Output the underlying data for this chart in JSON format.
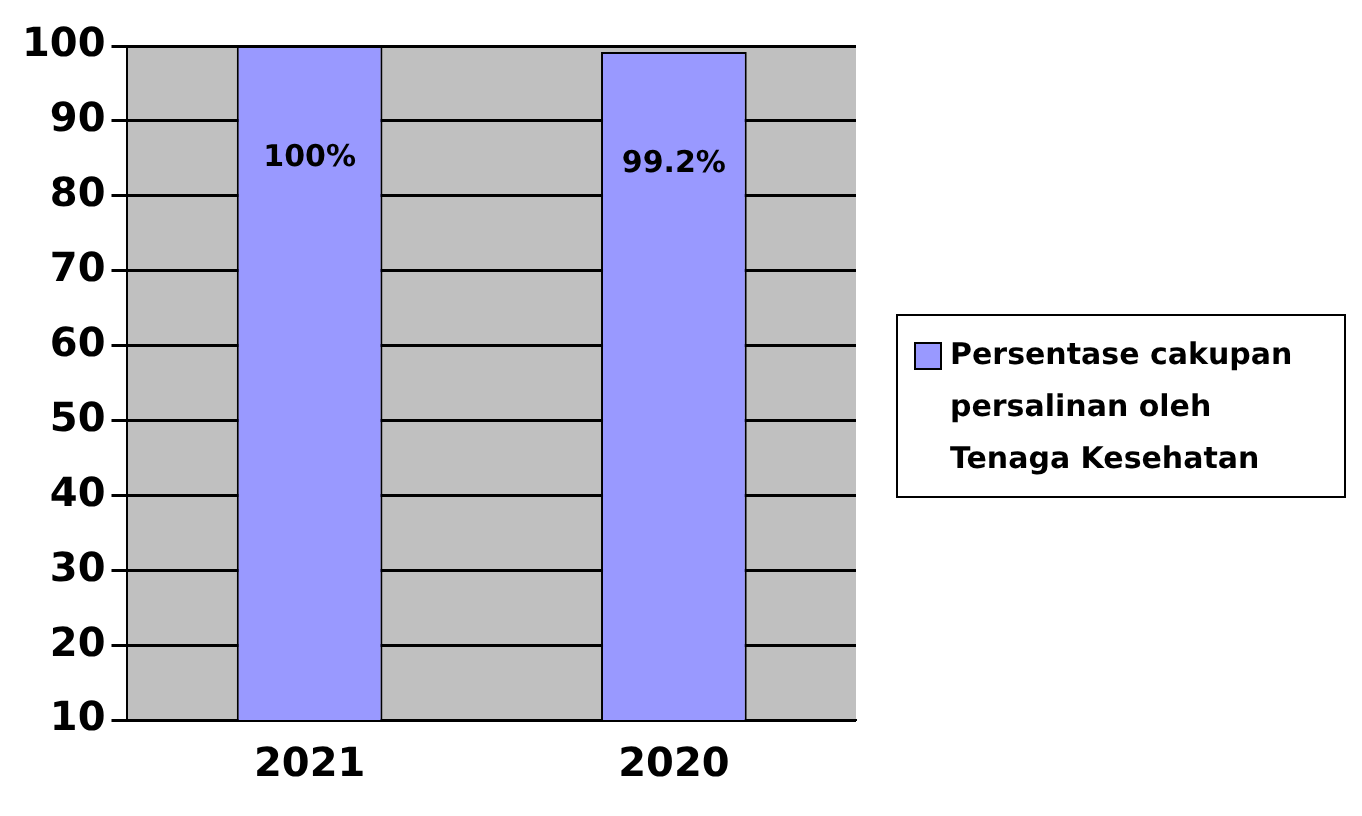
{
  "chart_data": {
    "type": "bar",
    "categories": [
      "2021",
      "2020"
    ],
    "series": [
      {
        "name": "Persentase cakupan persalinan oleh Tenaga Kesehatan",
        "color": "#9999ff",
        "values": [
          100,
          99.2
        ],
        "value_labels": [
          "100%",
          "99.2%"
        ]
      }
    ],
    "ylim": [
      10,
      100
    ],
    "yticks": [
      10,
      20,
      30,
      40,
      50,
      60,
      70,
      80,
      90,
      100
    ],
    "grid": "y",
    "legend": "right"
  }
}
